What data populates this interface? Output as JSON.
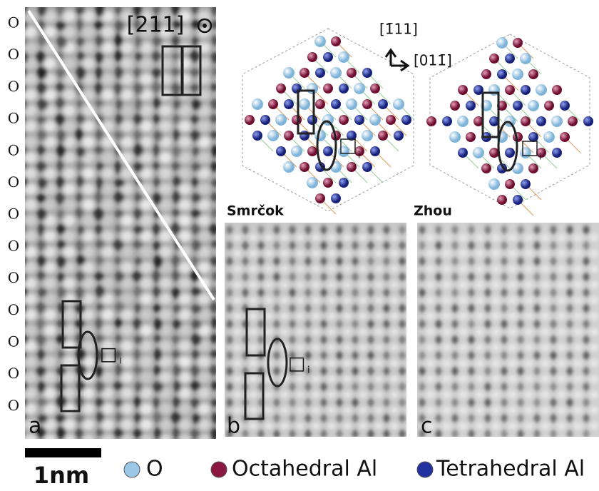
{
  "panel_a": {
    "label": "a",
    "zone_axis": "[211]",
    "row_labels": [
      "O",
      "O",
      "O",
      "O",
      "O",
      "O",
      "O",
      "O",
      "O",
      "O",
      "O",
      "O",
      "O"
    ],
    "vacancy": "□",
    "vacancy_sub": "i"
  },
  "structure": {
    "direction_up": "[1̄11]",
    "direction_right": "[011̄]"
  },
  "panel_b": {
    "title": "Smrčok",
    "label": "b"
  },
  "panel_c": {
    "title": "Zhou",
    "label": "c"
  },
  "scale_bar": "1nm",
  "legend": [
    {
      "label": "O",
      "color": "#9cc8e8"
    },
    {
      "label": "Octahedral Al",
      "color": "#8a1840"
    },
    {
      "label": "Tetrahedral Al",
      "color": "#2233a0"
    }
  ]
}
